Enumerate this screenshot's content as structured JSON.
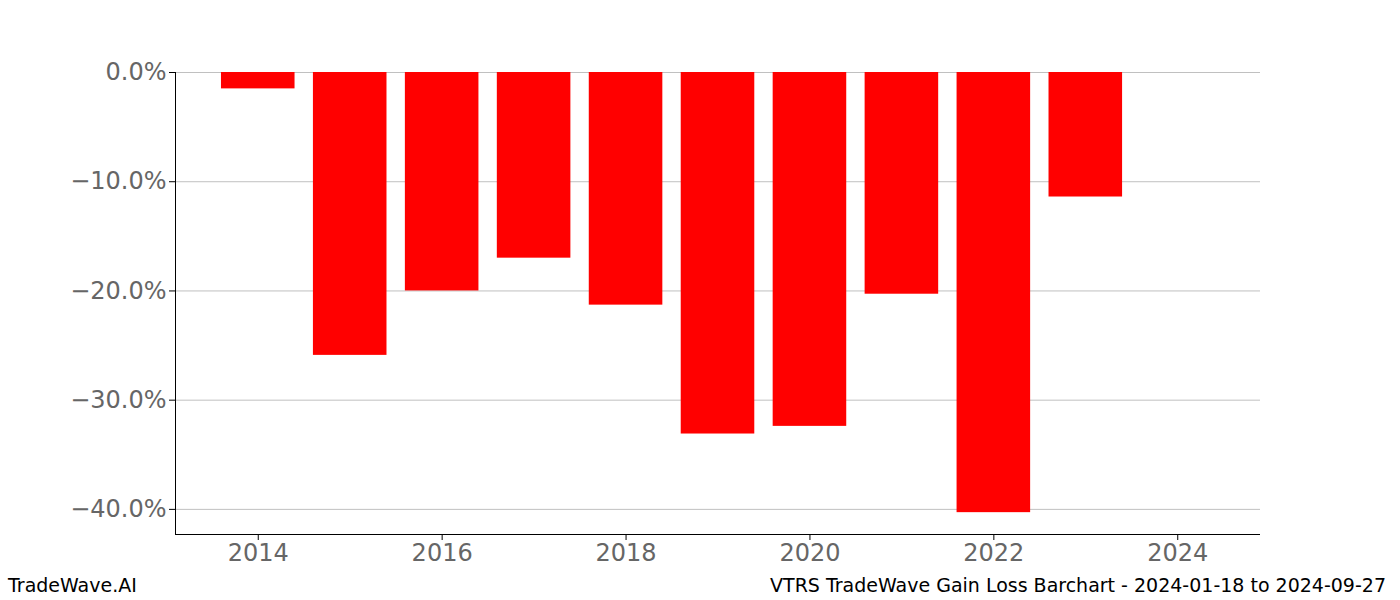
{
  "chart_data": {
    "type": "bar",
    "title": "VTRS TradeWave Gain Loss Barchart - 2024-01-18 to 2024-09-27",
    "annotations": [
      "TradeWave.AI"
    ],
    "x": [
      2014,
      2015,
      2016,
      2017,
      2018,
      2019,
      2020,
      2021,
      2022,
      2023
    ],
    "values": [
      -1.5,
      -25.9,
      -20.0,
      -17.0,
      -21.3,
      -33.1,
      -32.4,
      -20.3,
      -40.3,
      -11.4
    ],
    "color": "#ff0000",
    "xlim": [
      2013.1,
      2024.9
    ],
    "xticks": [
      2014,
      2016,
      2018,
      2020,
      2022,
      2024
    ],
    "ylim": [
      -42.3,
      0
    ],
    "yticks": [
      {
        "value": 0,
        "label": "0.0%"
      },
      {
        "value": -10,
        "label": "−10.0%"
      },
      {
        "value": -20,
        "label": "−20.0%"
      },
      {
        "value": -30,
        "label": "−30.0%"
      },
      {
        "value": -40,
        "label": "−40.0%"
      }
    ],
    "grid": true
  }
}
